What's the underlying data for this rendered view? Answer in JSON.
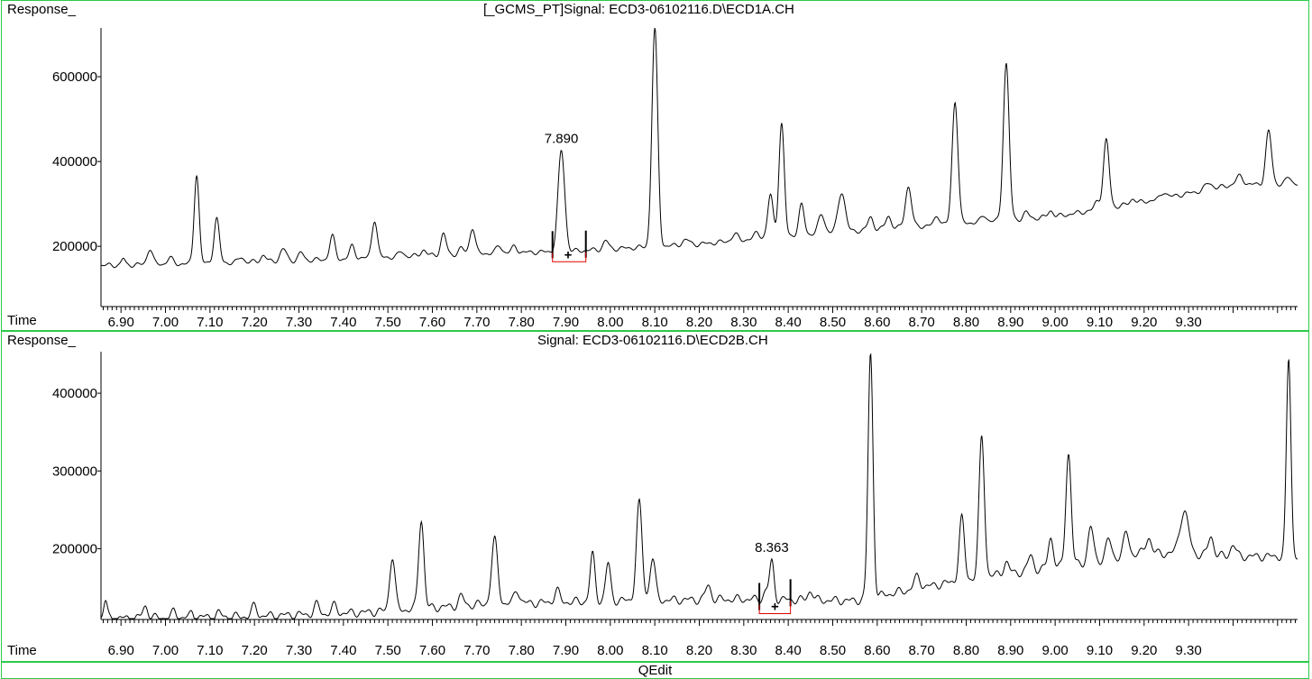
{
  "window": {
    "footer": "QEdit"
  },
  "chart_data": [
    {
      "type": "line",
      "title": "[_GCMS_PT]Signal: ECD3-06102116.D\\ECD1A.CH",
      "ylabel": "Response_",
      "xlabel": "Time",
      "xlim": [
        6.855,
        9.545
      ],
      "ylim": [
        60000,
        715000
      ],
      "y_ticks": [
        200000,
        400000,
        600000
      ],
      "y_tick_labels": [
        "200000",
        "400000",
        "600000"
      ],
      "x_ticks": [
        6.9,
        7.0,
        7.1,
        7.2,
        7.3,
        7.4,
        7.5,
        7.6,
        7.7,
        7.8,
        7.9,
        8.0,
        8.1,
        8.2,
        8.3,
        8.4,
        8.5,
        8.6,
        8.7,
        8.8,
        8.9,
        9.0,
        9.1,
        9.2,
        9.3
      ],
      "x_tick_labels": [
        "6.90",
        "7.00",
        "7.10",
        "7.20",
        "7.30",
        "7.40",
        "7.50",
        "7.60",
        "7.70",
        "7.80",
        "7.90",
        "8.00",
        "8.10",
        "8.20",
        "8.30",
        "8.40",
        "8.50",
        "8.60",
        "8.70",
        "8.80",
        "8.90",
        "9.00",
        "9.10",
        "9.20",
        "9.30"
      ],
      "baseline": [
        [
          6.855,
          155000
        ],
        [
          7.1,
          160000
        ],
        [
          7.4,
          170000
        ],
        [
          7.7,
          183000
        ],
        [
          7.9,
          188000
        ],
        [
          8.2,
          205000
        ],
        [
          8.4,
          225000
        ],
        [
          8.6,
          240000
        ],
        [
          8.8,
          255000
        ],
        [
          9.0,
          270000
        ],
        [
          9.2,
          305000
        ],
        [
          9.4,
          345000
        ],
        [
          9.545,
          348000
        ]
      ],
      "peaks": [
        [
          6.905,
          15000,
          0.004
        ],
        [
          6.965,
          38000,
          0.006
        ],
        [
          7.01,
          15000,
          0.006
        ],
        [
          7.07,
          212000,
          0.0055
        ],
        [
          7.115,
          105000,
          0.006
        ],
        [
          7.17,
          12000,
          0.006
        ],
        [
          7.22,
          15000,
          0.006
        ],
        [
          7.265,
          28000,
          0.007
        ],
        [
          7.305,
          18000,
          0.006
        ],
        [
          7.375,
          55000,
          0.006
        ],
        [
          7.42,
          30000,
          0.006
        ],
        [
          7.47,
          90000,
          0.006
        ],
        [
          7.53,
          12000,
          0.006
        ],
        [
          7.58,
          14000,
          0.006
        ],
        [
          7.625,
          50000,
          0.006
        ],
        [
          7.665,
          14000,
          0.006
        ],
        [
          7.69,
          62000,
          0.006
        ],
        [
          7.75,
          18000,
          0.006
        ],
        [
          7.785,
          15000,
          0.006
        ],
        [
          7.89,
          238000,
          0.0075
        ],
        [
          7.99,
          20000,
          0.006
        ],
        [
          8.1,
          515000,
          0.0065
        ],
        [
          8.17,
          12000,
          0.008
        ],
        [
          8.28,
          15000,
          0.007
        ],
        [
          8.33,
          15000,
          0.006
        ],
        [
          8.36,
          100000,
          0.006
        ],
        [
          8.385,
          265000,
          0.006
        ],
        [
          8.43,
          70000,
          0.006
        ],
        [
          8.475,
          45000,
          0.007
        ],
        [
          8.52,
          95000,
          0.008
        ],
        [
          8.585,
          30000,
          0.006
        ],
        [
          8.625,
          30000,
          0.006
        ],
        [
          8.67,
          95000,
          0.007
        ],
        [
          8.735,
          22000,
          0.006
        ],
        [
          8.775,
          290000,
          0.0065
        ],
        [
          8.84,
          15000,
          0.006
        ],
        [
          8.89,
          370000,
          0.0065
        ],
        [
          8.935,
          15000,
          0.006
        ],
        [
          8.99,
          15000,
          0.006
        ],
        [
          9.095,
          20000,
          0.006
        ],
        [
          9.115,
          160000,
          0.0065
        ],
        [
          9.175,
          12000,
          0.006
        ],
        [
          9.245,
          15000,
          0.006
        ],
        [
          9.345,
          15000,
          0.008
        ],
        [
          9.415,
          20000,
          0.008
        ],
        [
          9.48,
          125000,
          0.0065
        ],
        [
          9.525,
          15000,
          0.006
        ]
      ],
      "integration": {
        "label": "7.890",
        "start": 7.87,
        "end": 7.945,
        "marker": "+",
        "marker_x": 7.905
      }
    },
    {
      "type": "line",
      "title": "Signal: ECD3-06102116.D\\ECD2B.CH",
      "ylabel": "Response_",
      "xlabel": "Time",
      "xlim": [
        6.855,
        9.545
      ],
      "ylim": [
        110000,
        450000
      ],
      "y_ticks": [
        200000,
        300000,
        400000
      ],
      "y_tick_labels": [
        "200000",
        "300000",
        "400000"
      ],
      "x_ticks": [
        6.9,
        7.0,
        7.1,
        7.2,
        7.3,
        7.4,
        7.5,
        7.6,
        7.7,
        7.8,
        7.9,
        8.0,
        8.1,
        8.2,
        8.3,
        8.4,
        8.5,
        8.6,
        8.7,
        8.8,
        8.9,
        9.0,
        9.1,
        9.2,
        9.3
      ],
      "x_tick_labels": [
        "6.90",
        "7.00",
        "7.10",
        "7.20",
        "7.30",
        "7.40",
        "7.50",
        "7.60",
        "7.70",
        "7.80",
        "7.90",
        "8.00",
        "8.10",
        "8.20",
        "8.30",
        "8.40",
        "8.50",
        "8.60",
        "8.70",
        "8.80",
        "8.90",
        "9.00",
        "9.10",
        "9.20",
        "9.30"
      ],
      "baseline": [
        [
          6.855,
          110000
        ],
        [
          7.2,
          113000
        ],
        [
          7.45,
          118000
        ],
        [
          7.7,
          128000
        ],
        [
          8.0,
          133000
        ],
        [
          8.3,
          135000
        ],
        [
          8.55,
          133000
        ],
        [
          8.7,
          150000
        ],
        [
          8.85,
          165000
        ],
        [
          9.0,
          175000
        ],
        [
          9.2,
          195000
        ],
        [
          9.4,
          190000
        ],
        [
          9.545,
          190000
        ]
      ],
      "peaks": [
        [
          6.865,
          23000,
          0.004
        ],
        [
          6.955,
          15000,
          0.006
        ],
        [
          7.02,
          8000,
          0.005
        ],
        [
          7.06,
          6000,
          0.004
        ],
        [
          7.12,
          5000,
          0.005
        ],
        [
          7.2,
          13000,
          0.006
        ],
        [
          7.34,
          12000,
          0.006
        ],
        [
          7.38,
          10000,
          0.006
        ],
        [
          7.51,
          70000,
          0.006
        ],
        [
          7.575,
          115000,
          0.006
        ],
        [
          7.665,
          12000,
          0.006
        ],
        [
          7.74,
          82000,
          0.007
        ],
        [
          7.79,
          18000,
          0.006
        ],
        [
          7.88,
          15000,
          0.006
        ],
        [
          7.96,
          60000,
          0.0055
        ],
        [
          7.995,
          48000,
          0.0055
        ],
        [
          8.065,
          125000,
          0.0065
        ],
        [
          8.095,
          55000,
          0.006
        ],
        [
          8.22,
          18000,
          0.006
        ],
        [
          8.35,
          10000,
          0.006
        ],
        [
          8.363,
          48000,
          0.005
        ],
        [
          8.45,
          12000,
          0.006
        ],
        [
          8.585,
          315000,
          0.0055
        ],
        [
          8.69,
          15000,
          0.007
        ],
        [
          8.79,
          80000,
          0.006
        ],
        [
          8.835,
          180000,
          0.006
        ],
        [
          8.89,
          15000,
          0.006
        ],
        [
          8.945,
          20000,
          0.006
        ],
        [
          8.99,
          40000,
          0.006
        ],
        [
          9.03,
          145000,
          0.006
        ],
        [
          9.08,
          45000,
          0.006
        ],
        [
          9.12,
          25000,
          0.006
        ],
        [
          9.16,
          30000,
          0.006
        ],
        [
          9.21,
          20000,
          0.006
        ],
        [
          9.29,
          55000,
          0.01
        ],
        [
          9.35,
          25000,
          0.006
        ],
        [
          9.4,
          15000,
          0.006
        ],
        [
          9.525,
          255000,
          0.005
        ]
      ],
      "integration": {
        "label": "8.363",
        "start": 8.335,
        "end": 8.405,
        "marker": "+",
        "marker_x": 8.37
      }
    }
  ]
}
